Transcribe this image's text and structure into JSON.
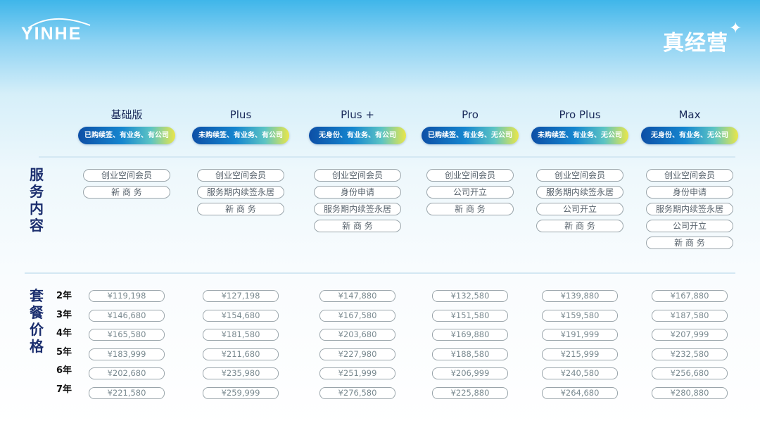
{
  "logo": {
    "text": "YINHE"
  },
  "brand": {
    "title": "真经营",
    "star_icon": "sparkle-icon"
  },
  "sections": {
    "services": "服务内容",
    "prices": "套餐价格"
  },
  "years": [
    "2年",
    "3年",
    "4年",
    "5年",
    "6年",
    "7年"
  ],
  "colors": {
    "badge_start": "#0d4fa6",
    "badge_end": "#e9e64a",
    "heading": "#1b2e6e"
  },
  "plans": [
    {
      "name": "基础版",
      "badge": "已购续签、有业务、有公司",
      "services": [
        "创业空间会员",
        "新 商 务"
      ],
      "prices": [
        "¥119,198",
        "¥146,680",
        "¥165,580",
        "¥183,999",
        "¥202,680",
        "¥221,580"
      ]
    },
    {
      "name": "Plus",
      "badge": "未购续签、有业务、有公司",
      "services": [
        "创业空间会员",
        "服务期内续签永居",
        "新 商 务"
      ],
      "prices": [
        "¥127,198",
        "¥154,680",
        "¥181,580",
        "¥211,680",
        "¥235,980",
        "¥259,999"
      ]
    },
    {
      "name": "Plus +",
      "badge": "无身份、有业务、有公司",
      "services": [
        "创业空间会员",
        "身份申请",
        "服务期内续签永居",
        "新 商 务"
      ],
      "prices": [
        "¥147,880",
        "¥167,580",
        "¥203,680",
        "¥227,980",
        "¥251,999",
        "¥276,580"
      ]
    },
    {
      "name": "Pro",
      "badge": "已购续签、有业务、无公司",
      "services": [
        "创业空间会员",
        "公司开立",
        "新 商 务"
      ],
      "prices": [
        "¥132,580",
        "¥151,580",
        "¥169,880",
        "¥188,580",
        "¥206,999",
        "¥225,880"
      ]
    },
    {
      "name": "Pro Plus",
      "badge": "未购续签、有业务、无公司",
      "services": [
        "创业空间会员",
        "服务期内续签永居",
        "公司开立",
        "新 商 务"
      ],
      "prices": [
        "¥139,880",
        "¥159,580",
        "¥191,999",
        "¥215,999",
        "¥240,580",
        "¥264,680"
      ]
    },
    {
      "name": "Max",
      "badge": "无身份、有业务、无公司",
      "services": [
        "创业空间会员",
        "身份申请",
        "服务期内续签永居",
        "公司开立",
        "新 商 务"
      ],
      "prices": [
        "¥167,880",
        "¥187,580",
        "¥207,999",
        "¥232,580",
        "¥256,680",
        "¥280,880"
      ]
    }
  ]
}
